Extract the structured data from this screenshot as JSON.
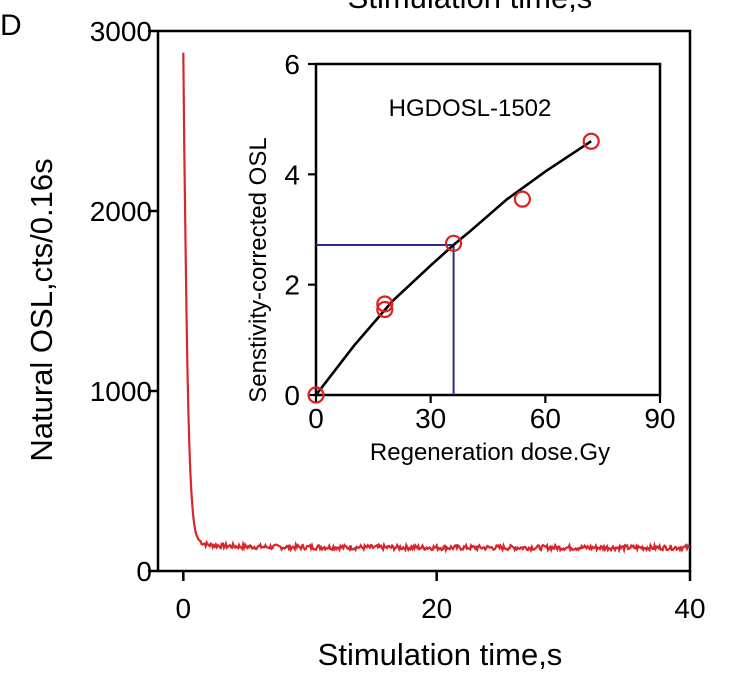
{
  "colors": {
    "main_curve": "#d8262c",
    "inset_points": "#e02020",
    "inset_fit": "#000000",
    "inset_guides": "#2b2b8c",
    "axes": "#000000"
  },
  "chart_data": [
    {
      "type": "line",
      "panel_label": "D",
      "title_top_partial": "Stimulation time,s",
      "xlabel": "Stimulation time,s",
      "ylabel": "Natural OSL,cts/0.16s",
      "xlim": [
        -2,
        40
      ],
      "ylim": [
        0,
        3000
      ],
      "xticks": [
        0,
        20,
        40
      ],
      "xtick_labels": [
        "0",
        "20",
        "40"
      ],
      "yticks": [
        0,
        1000,
        2000,
        3000
      ],
      "ytick_labels": [
        "0",
        "1000",
        "2000",
        "3000"
      ],
      "grid": false,
      "series": [
        {
          "x": [
            0,
            0.1,
            0.2,
            0.3,
            0.4,
            0.5,
            0.6,
            0.7,
            0.8,
            0.9,
            1.0,
            1.2,
            1.5,
            2.0,
            3.0,
            5.0,
            8.0,
            12.0,
            16.0,
            20.0,
            24.0,
            28.0,
            32.0,
            36.0,
            40.0
          ],
          "y": [
            2880,
            2200,
            1650,
            1200,
            880,
            640,
            480,
            370,
            290,
            240,
            205,
            175,
            155,
            145,
            140,
            135,
            133,
            132,
            131,
            130,
            130,
            130,
            130,
            130,
            130
          ]
        }
      ]
    },
    {
      "type": "scatter",
      "inset": true,
      "annotation": "HGDOSL-1502",
      "xlabel": "Regeneration dose.Gy",
      "ylabel": "Senstivity-corrected OSL",
      "xlim": [
        0,
        90
      ],
      "ylim": [
        0,
        6
      ],
      "xticks": [
        0,
        30,
        60,
        90
      ],
      "xtick_labels": [
        "0",
        "30",
        "60",
        "90"
      ],
      "yticks": [
        0,
        2,
        4,
        6
      ],
      "ytick_labels": [
        "0",
        "2",
        "4",
        "6"
      ],
      "points": {
        "x": [
          0,
          18,
          18,
          36,
          54,
          72
        ],
        "y": [
          0,
          1.55,
          1.65,
          2.75,
          3.55,
          4.6
        ]
      },
      "fit_curve": {
        "x": [
          0,
          10,
          20,
          30,
          36,
          40,
          50,
          60,
          72
        ],
        "y": [
          0,
          0.9,
          1.7,
          2.35,
          2.72,
          2.95,
          3.55,
          4.05,
          4.6
        ]
      },
      "equivalent_dose_guide": {
        "x": 36,
        "y": 2.72
      }
    }
  ]
}
